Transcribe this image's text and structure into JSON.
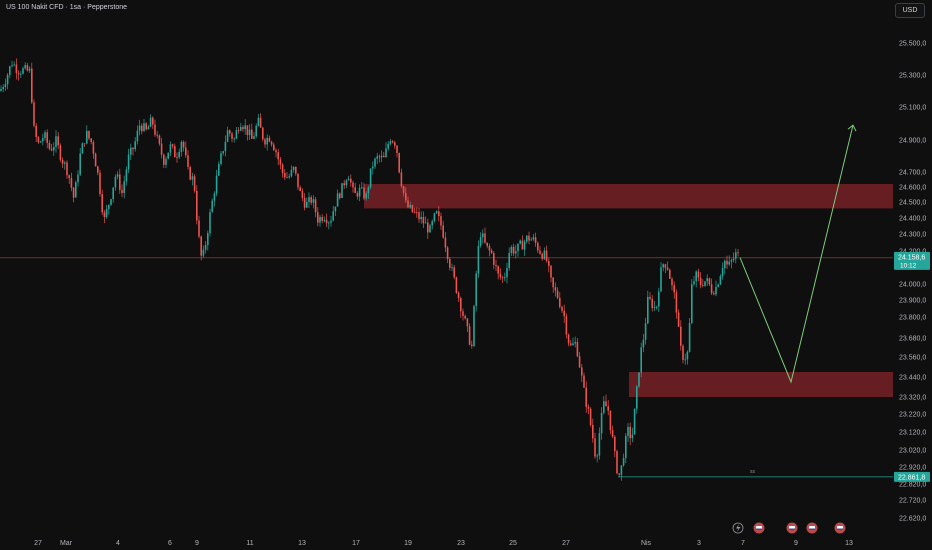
{
  "header": {
    "title": "US 100 Nakit CFD · 1sa · Pepperstone",
    "currency": "USD"
  },
  "chart_data": {
    "type": "candlestick",
    "price_axis": {
      "ticks": [
        "25.500,0",
        "25.300,0",
        "25.100,0",
        "24.900,0",
        "24.700,0",
        "24.600,0",
        "24.500,0",
        "24.400,0",
        "24.300,0",
        "24.200,0",
        "24.000,0",
        "23.900,0",
        "23.800,0",
        "23.680,0",
        "23.560,0",
        "23.440,0",
        "23.320,0",
        "23.220,0",
        "23.120,0",
        "23.020,0",
        "22.920,0",
        "22.820,0",
        "22.720,0",
        "22.620,0"
      ],
      "tick_values": [
        25500,
        25300,
        25100,
        24900,
        24700,
        24600,
        24500,
        24400,
        24300,
        24200,
        24000,
        23900,
        23800,
        23680,
        23560,
        23440,
        23320,
        23220,
        23120,
        23020,
        22920,
        22820,
        22720,
        22620
      ]
    },
    "time_axis": {
      "labels": [
        "27",
        "Mar",
        "4",
        "6",
        "9",
        "11",
        "13",
        "17",
        "19",
        "23",
        "25",
        "27",
        "Nis",
        "3",
        "7",
        "9",
        "13"
      ]
    },
    "current_price": {
      "label": "24.158,6",
      "countdown": "10:12",
      "value": 24158.6,
      "color": "#26a69a"
    },
    "support_line": {
      "label": "22.861,8",
      "value": 22861.8,
      "color": "#26a69a",
      "marker": "ss"
    },
    "zones": [
      {
        "name": "resistance",
        "from": 24460,
        "to": 24620,
        "color": "#6e1f24"
      },
      {
        "name": "support",
        "from": 23320,
        "to": 23470,
        "color": "#6e1f24"
      }
    ],
    "projection": {
      "color": "#7ecb7b",
      "points": [
        {
          "time": "7",
          "price": 24160
        },
        {
          "time": "9",
          "price": 23410
        },
        {
          "time": "13",
          "price": 24990
        }
      ]
    },
    "candles": {
      "up_color": "#26a69a",
      "down_color": "#ef5350",
      "close_path": [
        [
          0,
          25200
        ],
        [
          6,
          25280
        ],
        [
          12,
          25380
        ],
        [
          18,
          25330
        ],
        [
          24,
          25330
        ],
        [
          30,
          25320
        ],
        [
          34,
          24960
        ],
        [
          38,
          24870
        ],
        [
          44,
          24930
        ],
        [
          50,
          24840
        ],
        [
          56,
          24890
        ],
        [
          62,
          24780
        ],
        [
          68,
          24700
        ],
        [
          74,
          24520
        ],
        [
          80,
          24800
        ],
        [
          86,
          24940
        ],
        [
          92,
          24880
        ],
        [
          98,
          24680
        ],
        [
          104,
          24380
        ],
        [
          110,
          24520
        ],
        [
          116,
          24690
        ],
        [
          122,
          24560
        ],
        [
          128,
          24780
        ],
        [
          134,
          24860
        ],
        [
          140,
          25000
        ],
        [
          146,
          24950
        ],
        [
          152,
          25020
        ],
        [
          158,
          24880
        ],
        [
          164,
          24770
        ],
        [
          170,
          24860
        ],
        [
          176,
          24800
        ],
        [
          182,
          24910
        ],
        [
          188,
          24700
        ],
        [
          194,
          24640
        ],
        [
          198,
          24310
        ],
        [
          202,
          24130
        ],
        [
          206,
          24260
        ],
        [
          210,
          24420
        ],
        [
          216,
          24640
        ],
        [
          222,
          24820
        ],
        [
          228,
          24960
        ],
        [
          234,
          24900
        ],
        [
          240,
          25020
        ],
        [
          246,
          24970
        ],
        [
          252,
          24900
        ],
        [
          258,
          25010
        ],
        [
          264,
          24900
        ],
        [
          270,
          24920
        ],
        [
          276,
          24830
        ],
        [
          282,
          24700
        ],
        [
          288,
          24660
        ],
        [
          294,
          24720
        ],
        [
          300,
          24560
        ],
        [
          306,
          24480
        ],
        [
          312,
          24520
        ],
        [
          318,
          24390
        ],
        [
          324,
          24420
        ],
        [
          330,
          24380
        ],
        [
          336,
          24510
        ],
        [
          342,
          24590
        ],
        [
          348,
          24700
        ],
        [
          354,
          24540
        ],
        [
          360,
          24580
        ],
        [
          366,
          24530
        ],
        [
          372,
          24740
        ],
        [
          378,
          24790
        ],
        [
          384,
          24780
        ],
        [
          390,
          24920
        ],
        [
          396,
          24880
        ],
        [
          400,
          24680
        ],
        [
          406,
          24480
        ],
        [
          412,
          24440
        ],
        [
          418,
          24410
        ],
        [
          424,
          24370
        ],
        [
          430,
          24320
        ],
        [
          436,
          24430
        ],
        [
          442,
          24340
        ],
        [
          446,
          24230
        ],
        [
          450,
          24120
        ],
        [
          456,
          23980
        ],
        [
          462,
          23840
        ],
        [
          468,
          23700
        ],
        [
          472,
          23620
        ],
        [
          476,
          24050
        ],
        [
          480,
          24320
        ],
        [
          486,
          24220
        ],
        [
          492,
          24180
        ],
        [
          498,
          24050
        ],
        [
          504,
          24030
        ],
        [
          510,
          24220
        ],
        [
          516,
          24200
        ],
        [
          522,
          24240
        ],
        [
          528,
          24280
        ],
        [
          534,
          24260
        ],
        [
          540,
          24200
        ],
        [
          546,
          24160
        ],
        [
          552,
          23980
        ],
        [
          558,
          23920
        ],
        [
          564,
          23810
        ],
        [
          570,
          23620
        ],
        [
          576,
          23650
        ],
        [
          580,
          23500
        ],
        [
          584,
          23350
        ],
        [
          588,
          23240
        ],
        [
          592,
          23120
        ],
        [
          596,
          22970
        ],
        [
          600,
          23140
        ],
        [
          604,
          23280
        ],
        [
          608,
          23250
        ],
        [
          612,
          23100
        ],
        [
          616,
          22930
        ],
        [
          620,
          22860
        ],
        [
          624,
          23020
        ],
        [
          628,
          23120
        ],
        [
          632,
          23090
        ],
        [
          636,
          23300
        ],
        [
          640,
          23560
        ],
        [
          644,
          23700
        ],
        [
          648,
          23900
        ],
        [
          652,
          23880
        ],
        [
          656,
          23840
        ],
        [
          660,
          24050
        ],
        [
          664,
          24140
        ],
        [
          668,
          24100
        ],
        [
          672,
          23980
        ],
        [
          676,
          23880
        ],
        [
          680,
          23620
        ],
        [
          684,
          23550
        ],
        [
          688,
          23590
        ],
        [
          692,
          24000
        ],
        [
          696,
          24050
        ],
        [
          700,
          24000
        ],
        [
          704,
          24020
        ],
        [
          708,
          24010
        ],
        [
          712,
          23960
        ],
        [
          716,
          23980
        ],
        [
          720,
          24060
        ],
        [
          724,
          24150
        ],
        [
          728,
          24100
        ],
        [
          732,
          24140
        ],
        [
          736,
          24180
        ],
        [
          740,
          24158
        ]
      ]
    }
  }
}
